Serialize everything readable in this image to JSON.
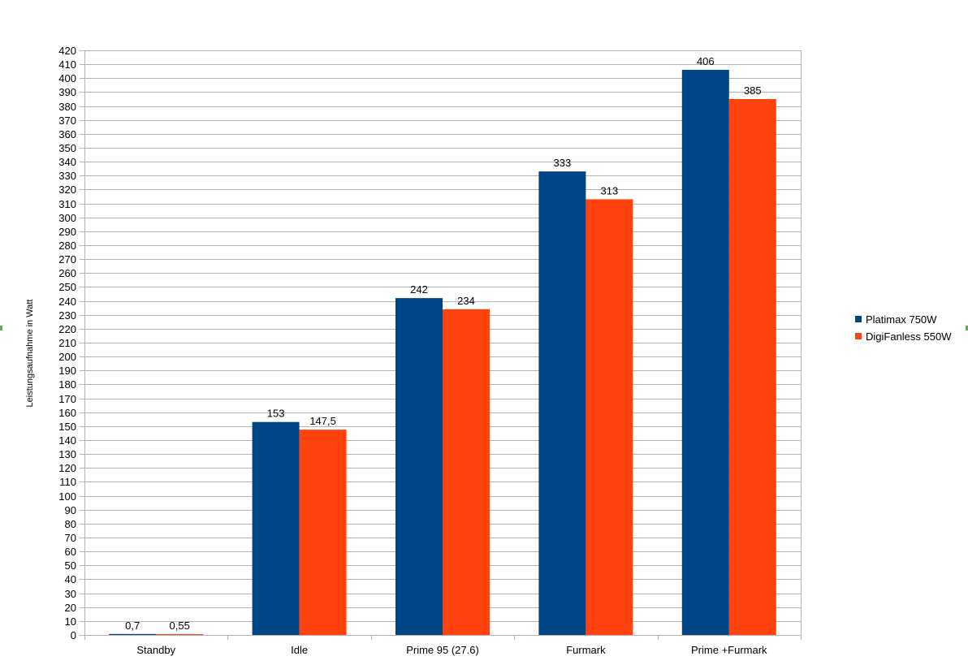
{
  "chart_data": {
    "type": "bar",
    "title": "",
    "xlabel": "",
    "ylabel": "Leistungsaufnahme in Watt",
    "ylim": [
      0,
      420
    ],
    "ytick_step": 10,
    "grid": true,
    "legend_position": "right",
    "categories": [
      "Standby",
      "Idle",
      "Prime 95 (27.6)",
      "Furmark",
      "Prime +Furmark"
    ],
    "series": [
      {
        "name": "Platimax 750W",
        "color": "#004586",
        "values": [
          0.7,
          153,
          242,
          333,
          406
        ],
        "labels": [
          "0,7",
          "153",
          "242",
          "333",
          "406"
        ]
      },
      {
        "name": "DigiFanless 550W",
        "color": "#ff420e",
        "values": [
          0.55,
          147.5,
          234,
          313,
          385
        ],
        "labels": [
          "0,55",
          "147,5",
          "234",
          "313",
          "385"
        ]
      }
    ]
  }
}
